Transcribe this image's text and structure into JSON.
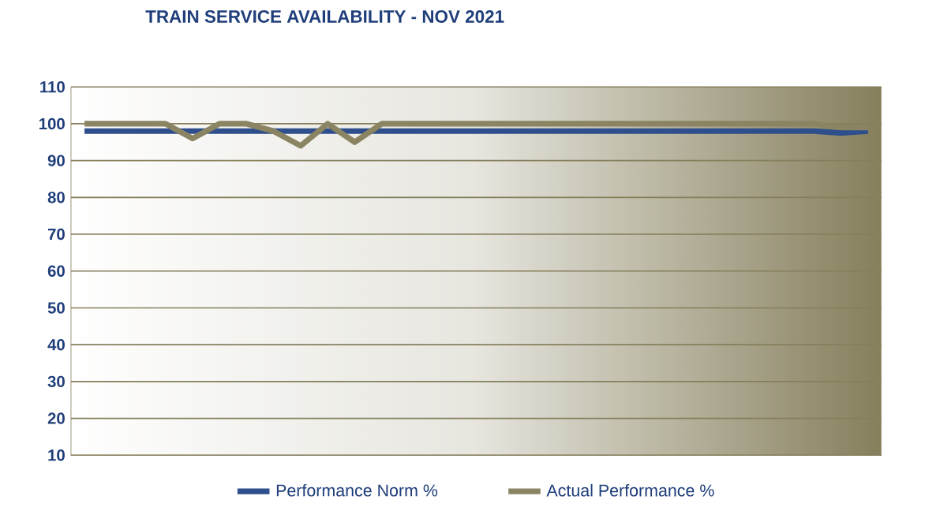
{
  "chart_data": {
    "type": "line",
    "title": "TRAIN SERVICE AVAILABILITY  - NOV 2021",
    "categories": [
      null,
      null,
      null,
      null,
      null,
      null,
      null,
      null,
      null,
      null,
      null,
      null,
      null,
      null,
      null,
      null,
      null,
      null,
      null,
      null,
      null,
      null,
      null,
      null,
      null,
      null,
      null,
      null,
      null,
      null
    ],
    "series": [
      {
        "name": "Performance Norm %",
        "color": "#2e4f8c",
        "values": [
          98,
          98,
          98,
          98,
          98,
          98,
          98,
          98,
          98,
          98,
          98,
          98,
          98,
          98,
          98,
          98,
          98,
          98,
          98,
          98,
          98,
          98,
          98,
          98,
          98,
          98,
          98,
          98,
          97.5,
          98
        ]
      },
      {
        "name": "Actual Performance %",
        "color": "#8a8463",
        "values": [
          100,
          100,
          100,
          100,
          96,
          100,
          100,
          98,
          94,
          100,
          95,
          100,
          100,
          100,
          100,
          100,
          100,
          100,
          100,
          100,
          100,
          100,
          100,
          100,
          100,
          100,
          100,
          100,
          99,
          99
        ]
      }
    ],
    "ylim": [
      10,
      110
    ],
    "yticks": [
      10,
      20,
      30,
      40,
      50,
      60,
      70,
      80,
      90,
      100,
      110
    ],
    "grid": "y",
    "legend": "bottom",
    "marker": "none",
    "line_style": "solid"
  }
}
